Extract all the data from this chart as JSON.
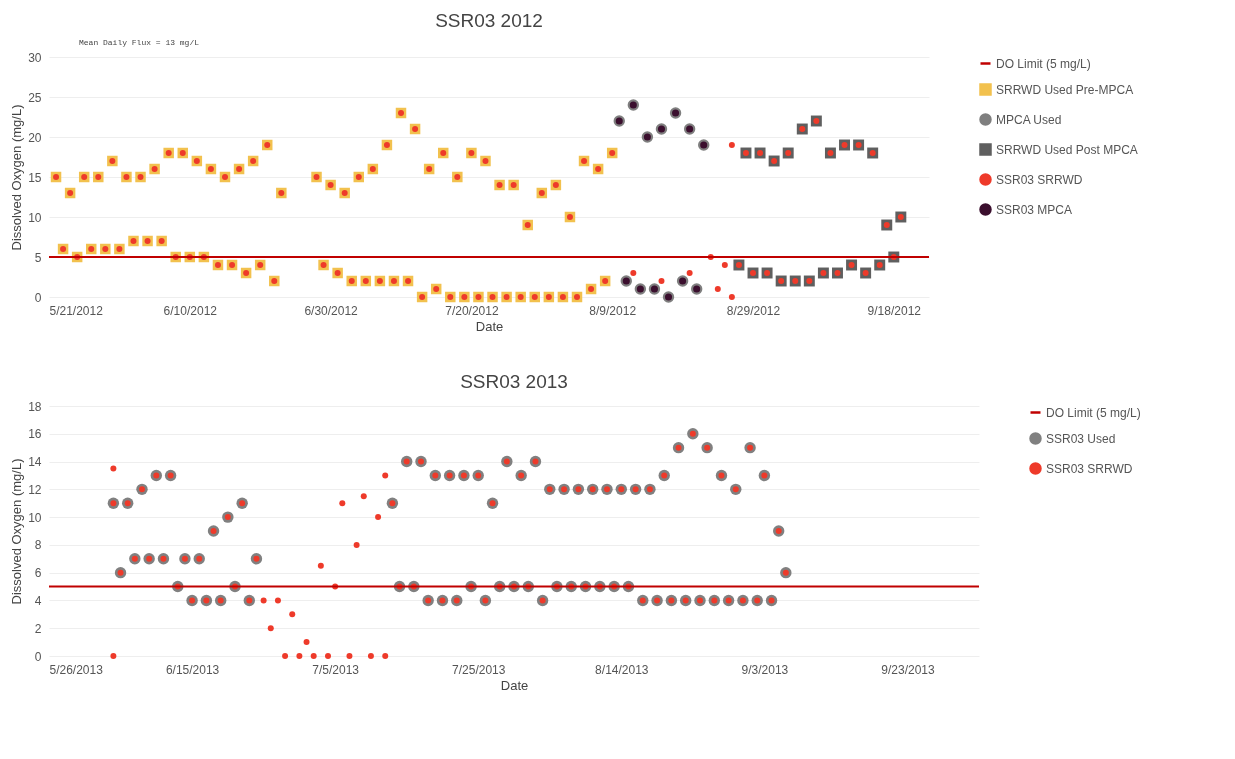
{
  "chart_data": [
    {
      "type": "scatter",
      "title": "SSR03 2012",
      "xlabel": "Date",
      "ylabel": "Dissolved Oxygen (mg/L)",
      "annotations": [
        "Mean Daily Flux = 13 mg/L"
      ],
      "xlim": [
        "2012-05-21",
        "2012-09-23"
      ],
      "xticks": [
        {
          "value": "2012-05-21",
          "label": "5/21/2012"
        },
        {
          "value": "2012-06-10",
          "label": "6/10/2012"
        },
        {
          "value": "2012-06-30",
          "label": "6/30/2012"
        },
        {
          "value": "2012-07-20",
          "label": "7/20/2012"
        },
        {
          "value": "2012-08-09",
          "label": "8/9/2012"
        },
        {
          "value": "2012-08-29",
          "label": "8/29/2012"
        },
        {
          "value": "2012-09-18",
          "label": "9/18/2012"
        }
      ],
      "ylim": [
        0,
        30
      ],
      "yticks": [
        0,
        5,
        10,
        15,
        20,
        25,
        30
      ],
      "grid": "y",
      "legend": "right",
      "ref_lines": [
        {
          "axis": "y",
          "value": 5,
          "label": "DO Limit (5 mg/L)",
          "color": "#c00000",
          "line_style": "solid"
        }
      ],
      "series": [
        {
          "name": "SRRWD Used Pre-MPCA",
          "color": "#f2c14e",
          "marker": "square",
          "x": [
            "2012-05-22",
            "2012-05-23",
            "2012-05-24",
            "2012-05-25",
            "2012-05-26",
            "2012-05-27",
            "2012-05-28",
            "2012-05-29",
            "2012-05-30",
            "2012-05-31",
            "2012-06-01",
            "2012-06-02",
            "2012-06-03",
            "2012-06-04",
            "2012-06-05",
            "2012-06-06",
            "2012-06-07",
            "2012-06-08",
            "2012-06-09",
            "2012-06-10",
            "2012-06-11",
            "2012-06-12",
            "2012-06-13",
            "2012-06-14",
            "2012-06-15",
            "2012-06-16",
            "2012-06-17",
            "2012-06-18",
            "2012-06-19",
            "2012-06-20",
            "2012-06-21",
            "2012-06-22",
            "2012-06-23",
            "2012-06-28",
            "2012-06-29",
            "2012-06-30",
            "2012-07-01",
            "2012-07-02",
            "2012-07-03",
            "2012-07-04",
            "2012-07-05",
            "2012-07-06",
            "2012-07-07",
            "2012-07-08",
            "2012-07-09",
            "2012-07-10",
            "2012-07-11",
            "2012-07-12",
            "2012-07-13",
            "2012-07-14",
            "2012-07-15",
            "2012-07-16",
            "2012-07-17",
            "2012-07-18",
            "2012-07-19",
            "2012-07-20",
            "2012-07-21",
            "2012-07-22",
            "2012-07-23",
            "2012-07-24",
            "2012-07-25",
            "2012-07-26",
            "2012-07-27",
            "2012-07-28",
            "2012-07-29",
            "2012-07-30",
            "2012-07-31",
            "2012-08-01",
            "2012-08-02",
            "2012-08-03",
            "2012-08-04",
            "2012-08-05",
            "2012-08-06",
            "2012-08-07",
            "2012-08-08",
            "2012-08-09"
          ],
          "values": [
            15,
            6,
            13,
            5,
            15,
            6,
            15,
            6,
            17,
            6,
            15,
            7,
            15,
            7,
            16,
            7,
            18,
            5,
            18,
            5,
            17,
            5,
            16,
            4,
            15,
            4,
            16,
            3,
            17,
            4,
            19,
            2,
            13,
            15,
            4,
            14,
            3,
            13,
            2,
            15,
            2,
            16,
            2,
            19,
            2,
            23,
            2,
            21,
            0,
            16,
            1,
            18,
            0,
            15,
            0,
            18,
            0,
            17,
            0,
            14,
            0,
            14,
            0,
            9,
            0,
            13,
            0,
            14,
            0,
            10,
            0,
            17,
            1,
            16,
            2,
            18
          ]
        },
        {
          "name": "MPCA Used",
          "color": "#7f7f7f",
          "marker": "circle",
          "x": [
            "2012-08-10",
            "2012-08-11",
            "2012-08-12",
            "2012-08-13",
            "2012-08-14",
            "2012-08-15",
            "2012-08-16",
            "2012-08-17",
            "2012-08-18",
            "2012-08-19",
            "2012-08-20",
            "2012-08-21",
            "2012-08-22"
          ],
          "values": [
            22,
            2,
            24,
            1,
            20,
            1,
            21,
            0,
            23,
            2,
            21,
            1,
            19
          ]
        },
        {
          "name": "SRRWD Used Post MPCA",
          "color": "#5f5f5f",
          "marker": "square",
          "x": [
            "2012-08-27",
            "2012-08-28",
            "2012-08-29",
            "2012-08-30",
            "2012-08-31",
            "2012-09-01",
            "2012-09-02",
            "2012-09-03",
            "2012-09-04",
            "2012-09-05",
            "2012-09-06",
            "2012-09-07",
            "2012-09-08",
            "2012-09-09",
            "2012-09-10",
            "2012-09-11",
            "2012-09-12",
            "2012-09-13",
            "2012-09-14",
            "2012-09-15",
            "2012-09-16",
            "2012-09-17",
            "2012-09-18",
            "2012-09-19"
          ],
          "values": [
            4,
            18,
            3,
            18,
            3,
            17,
            2,
            18,
            2,
            21,
            2,
            22,
            3,
            18,
            3,
            19,
            4,
            19,
            3,
            18,
            4,
            9,
            5,
            10
          ]
        },
        {
          "name": "SSR03 SRRWD",
          "color": "#ee3a2a",
          "marker": "circle",
          "x": [
            "2012-05-22",
            "2012-05-23",
            "2012-05-24",
            "2012-05-25",
            "2012-05-26",
            "2012-05-27",
            "2012-05-28",
            "2012-05-29",
            "2012-05-30",
            "2012-05-31",
            "2012-06-01",
            "2012-06-02",
            "2012-06-03",
            "2012-06-04",
            "2012-06-05",
            "2012-06-06",
            "2012-06-07",
            "2012-06-08",
            "2012-06-09",
            "2012-06-10",
            "2012-06-11",
            "2012-06-12",
            "2012-06-13",
            "2012-06-14",
            "2012-06-15",
            "2012-06-16",
            "2012-06-17",
            "2012-06-18",
            "2012-06-19",
            "2012-06-20",
            "2012-06-21",
            "2012-06-22",
            "2012-06-23",
            "2012-06-28",
            "2012-06-29",
            "2012-06-30",
            "2012-07-01",
            "2012-07-02",
            "2012-07-03",
            "2012-07-04",
            "2012-07-05",
            "2012-07-06",
            "2012-07-07",
            "2012-07-08",
            "2012-07-09",
            "2012-07-10",
            "2012-07-11",
            "2012-07-12",
            "2012-07-13",
            "2012-07-14",
            "2012-07-15",
            "2012-07-16",
            "2012-07-17",
            "2012-07-18",
            "2012-07-19",
            "2012-07-20",
            "2012-07-21",
            "2012-07-22",
            "2012-07-23",
            "2012-07-24",
            "2012-07-25",
            "2012-07-26",
            "2012-07-27",
            "2012-07-28",
            "2012-07-29",
            "2012-07-30",
            "2012-07-31",
            "2012-08-01",
            "2012-08-02",
            "2012-08-03",
            "2012-08-04",
            "2012-08-05",
            "2012-08-06",
            "2012-08-07",
            "2012-08-08",
            "2012-08-09",
            "2012-08-12",
            "2012-08-16",
            "2012-08-20",
            "2012-08-23",
            "2012-08-24",
            "2012-08-25",
            "2012-08-26",
            "2012-08-26",
            "2012-08-27",
            "2012-08-28",
            "2012-08-29",
            "2012-08-30",
            "2012-08-31",
            "2012-09-01",
            "2012-09-02",
            "2012-09-03",
            "2012-09-04",
            "2012-09-05",
            "2012-09-06",
            "2012-09-07",
            "2012-09-08",
            "2012-09-09",
            "2012-09-10",
            "2012-09-11",
            "2012-09-12",
            "2012-09-13",
            "2012-09-14",
            "2012-09-15",
            "2012-09-16",
            "2012-09-17",
            "2012-09-18",
            "2012-09-19"
          ],
          "values": [
            15,
            6,
            13,
            5,
            15,
            6,
            15,
            6,
            17,
            6,
            15,
            7,
            15,
            7,
            16,
            7,
            18,
            5,
            18,
            5,
            17,
            5,
            16,
            4,
            15,
            4,
            16,
            3,
            17,
            4,
            19,
            2,
            13,
            15,
            4,
            14,
            3,
            13,
            2,
            15,
            2,
            16,
            2,
            19,
            2,
            23,
            2,
            21,
            0,
            16,
            1,
            18,
            0,
            15,
            0,
            18,
            0,
            17,
            0,
            14,
            0,
            14,
            0,
            9,
            0,
            13,
            0,
            14,
            0,
            10,
            0,
            17,
            1,
            16,
            2,
            18,
            3,
            2,
            3,
            5,
            1,
            4,
            0,
            19,
            4,
            18,
            3,
            18,
            3,
            17,
            2,
            18,
            2,
            21,
            2,
            22,
            3,
            18,
            3,
            19,
            4,
            19,
            3,
            18,
            4,
            9,
            5,
            10
          ]
        },
        {
          "name": "SSR03 MPCA",
          "color": "#3b0f2e",
          "marker": "circle",
          "x": [
            "2012-08-10",
            "2012-08-11",
            "2012-08-12",
            "2012-08-13",
            "2012-08-14",
            "2012-08-15",
            "2012-08-16",
            "2012-08-17",
            "2012-08-18",
            "2012-08-19",
            "2012-08-20",
            "2012-08-21",
            "2012-08-22"
          ],
          "values": [
            22,
            2,
            24,
            1,
            20,
            1,
            21,
            0,
            23,
            2,
            21,
            1,
            19
          ]
        }
      ]
    },
    {
      "type": "scatter",
      "title": "SSR03 2013",
      "xlabel": "Date",
      "ylabel": "Dissolved Oxygen (mg/L)",
      "xlim": [
        "2013-05-26",
        "2013-10-03"
      ],
      "xticks": [
        {
          "value": "2013-05-26",
          "label": "5/26/2013"
        },
        {
          "value": "2013-06-15",
          "label": "6/15/2013"
        },
        {
          "value": "2013-07-05",
          "label": "7/5/2013"
        },
        {
          "value": "2013-07-25",
          "label": "7/25/2013"
        },
        {
          "value": "2013-08-14",
          "label": "8/14/2013"
        },
        {
          "value": "2013-09-03",
          "label": "9/3/2013"
        },
        {
          "value": "2013-09-23",
          "label": "9/23/2013"
        }
      ],
      "ylim": [
        0,
        18
      ],
      "yticks": [
        0,
        2,
        4,
        6,
        8,
        10,
        12,
        14,
        16,
        18
      ],
      "grid": "y",
      "legend": "right",
      "ref_lines": [
        {
          "axis": "y",
          "value": 5,
          "label": "DO Limit (5 mg/L)",
          "color": "#c00000",
          "line_style": "solid"
        }
      ],
      "series": [
        {
          "name": "SSR03 Used",
          "color": "#808080",
          "marker": "circle",
          "x": [
            "2013-06-04",
            "2013-06-05",
            "2013-06-06",
            "2013-06-07",
            "2013-06-08",
            "2013-06-09",
            "2013-06-10",
            "2013-06-11",
            "2013-06-12",
            "2013-06-13",
            "2013-06-14",
            "2013-06-15",
            "2013-06-16",
            "2013-06-17",
            "2013-06-18",
            "2013-06-19",
            "2013-06-20",
            "2013-06-21",
            "2013-06-22",
            "2013-06-23",
            "2013-06-24",
            "2013-07-13",
            "2013-07-14",
            "2013-07-15",
            "2013-07-16",
            "2013-07-17",
            "2013-07-18",
            "2013-07-19",
            "2013-07-20",
            "2013-07-21",
            "2013-07-22",
            "2013-07-23",
            "2013-07-24",
            "2013-07-25",
            "2013-07-26",
            "2013-07-27",
            "2013-07-28",
            "2013-07-29",
            "2013-07-30",
            "2013-07-31",
            "2013-08-01",
            "2013-08-02",
            "2013-08-03",
            "2013-08-04",
            "2013-08-05",
            "2013-08-06",
            "2013-08-07",
            "2013-08-08",
            "2013-08-09",
            "2013-08-10",
            "2013-08-11",
            "2013-08-12",
            "2013-08-13",
            "2013-08-14",
            "2013-08-15",
            "2013-08-16",
            "2013-08-17",
            "2013-08-18",
            "2013-08-19",
            "2013-08-20",
            "2013-08-21",
            "2013-08-22",
            "2013-08-23",
            "2013-08-24",
            "2013-08-25",
            "2013-08-26",
            "2013-08-27",
            "2013-08-28",
            "2013-08-29",
            "2013-08-30",
            "2013-08-31",
            "2013-09-01",
            "2013-09-02",
            "2013-09-03",
            "2013-09-04",
            "2013-09-05",
            "2013-09-06"
          ],
          "values": [
            11,
            6,
            11,
            7,
            12,
            7,
            13,
            7,
            13,
            5,
            7,
            4,
            7,
            4,
            9,
            4,
            10,
            5,
            11,
            4,
            7,
            11,
            5,
            14,
            5,
            14,
            4,
            13,
            4,
            13,
            4,
            13,
            5,
            13,
            4,
            11,
            5,
            14,
            5,
            13,
            5,
            14,
            4,
            12,
            5,
            12,
            5,
            12,
            5,
            12,
            5,
            12,
            5,
            12,
            5,
            12,
            4,
            12,
            4,
            13,
            4,
            15,
            4,
            16,
            4,
            15,
            4,
            13,
            4,
            12,
            4,
            15,
            4,
            13,
            4,
            9,
            6
          ]
        },
        {
          "name": "SSR03 SRRWD",
          "color": "#ee3a2a",
          "marker": "circle",
          "x": [
            "2013-06-04",
            "2013-06-04",
            "2013-06-04",
            "2013-06-05",
            "2013-06-06",
            "2013-06-07",
            "2013-06-08",
            "2013-06-09",
            "2013-06-10",
            "2013-06-11",
            "2013-06-12",
            "2013-06-13",
            "2013-06-14",
            "2013-06-15",
            "2013-06-16",
            "2013-06-17",
            "2013-06-18",
            "2013-06-19",
            "2013-06-20",
            "2013-06-21",
            "2013-06-22",
            "2013-06-23",
            "2013-06-24",
            "2013-06-25",
            "2013-06-26",
            "2013-06-27",
            "2013-06-28",
            "2013-06-29",
            "2013-06-30",
            "2013-07-01",
            "2013-07-02",
            "2013-07-03",
            "2013-07-04",
            "2013-07-05",
            "2013-07-06",
            "2013-07-07",
            "2013-07-08",
            "2013-07-09",
            "2013-07-10",
            "2013-07-11",
            "2013-07-12",
            "2013-07-12",
            "2013-07-13",
            "2013-07-14",
            "2013-07-15",
            "2013-07-16",
            "2013-07-17",
            "2013-07-18",
            "2013-07-19",
            "2013-07-20",
            "2013-07-21",
            "2013-07-22",
            "2013-07-23",
            "2013-07-24",
            "2013-07-25",
            "2013-07-26",
            "2013-07-27",
            "2013-07-28",
            "2013-07-29",
            "2013-07-30",
            "2013-07-31",
            "2013-08-01",
            "2013-08-02",
            "2013-08-03",
            "2013-08-04",
            "2013-08-05",
            "2013-08-06",
            "2013-08-07",
            "2013-08-08",
            "2013-08-09",
            "2013-08-10",
            "2013-08-11",
            "2013-08-12",
            "2013-08-13",
            "2013-08-14",
            "2013-08-15",
            "2013-08-16",
            "2013-08-17",
            "2013-08-18",
            "2013-08-19",
            "2013-08-20",
            "2013-08-21",
            "2013-08-22",
            "2013-08-23",
            "2013-08-24",
            "2013-08-25",
            "2013-08-26",
            "2013-08-27",
            "2013-08-28",
            "2013-08-29",
            "2013-08-30",
            "2013-08-31",
            "2013-09-01",
            "2013-09-02",
            "2013-09-03",
            "2013-09-04",
            "2013-09-05",
            "2013-09-06"
          ],
          "values": [
            13.5,
            0,
            11,
            6,
            11,
            7,
            12,
            7,
            13,
            7,
            13,
            5,
            7,
            4,
            7,
            4,
            9,
            4,
            10,
            5,
            11,
            4,
            7,
            4,
            2,
            4,
            0,
            3,
            0,
            1,
            0,
            6.5,
            0,
            5,
            11,
            0,
            8,
            11.5,
            0,
            10,
            13,
            0,
            11,
            5,
            14,
            5,
            14,
            4,
            13,
            4,
            13,
            4,
            13,
            5,
            13,
            4,
            11,
            5,
            14,
            5,
            13,
            5,
            14,
            4,
            12,
            5,
            12,
            5,
            12,
            5,
            12,
            5,
            12,
            5,
            12,
            5,
            12,
            4,
            12,
            4,
            13,
            4,
            15,
            4,
            16,
            4,
            15,
            4,
            13,
            4,
            12,
            4,
            15,
            4,
            13,
            4,
            9,
            6
          ]
        }
      ]
    }
  ]
}
